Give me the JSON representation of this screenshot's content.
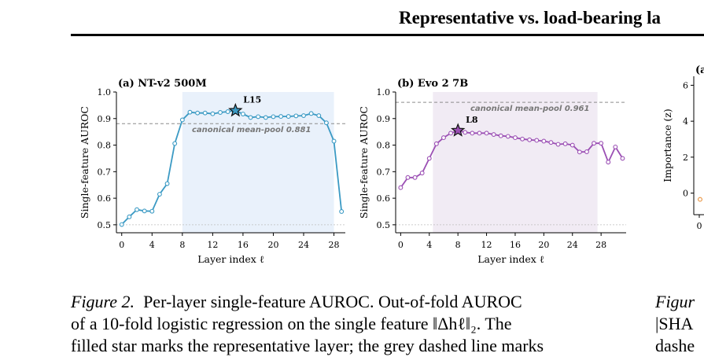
{
  "header": {
    "title": "Representative vs. load-bearing la"
  },
  "caption_left": {
    "label": "Figure 2.",
    "lines": [
      "Per-layer single-feature AUROC. Out-of-fold AUROC",
      "of a 10-fold logistic regression on the single feature ‖Δhℓ‖₂. The",
      "filled star marks the representative layer; the grey dashed line marks"
    ]
  },
  "caption_right": {
    "lines": [
      "Figur",
      "|SHA",
      "dashe"
    ]
  },
  "chart_data": [
    {
      "type": "line",
      "title": "(a) NT-v2 500M",
      "xlabel": "Layer index ℓ",
      "ylabel": "Single-feature AUROC",
      "xlim": [
        0,
        29
      ],
      "ylim": [
        0.5,
        1.0
      ],
      "xticks": [
        0,
        4,
        8,
        12,
        16,
        20,
        24,
        28
      ],
      "yticks": [
        0.5,
        0.6,
        0.7,
        0.8,
        0.9,
        1.0
      ],
      "color": "#3b9ac4",
      "shaded_region": [
        8,
        28
      ],
      "x": [
        0,
        1,
        2,
        3,
        4,
        5,
        6,
        7,
        8,
        9,
        10,
        11,
        12,
        13,
        14,
        15,
        16,
        17,
        18,
        19,
        20,
        21,
        22,
        23,
        24,
        25,
        26,
        27,
        28,
        29
      ],
      "values": [
        0.501,
        0.53,
        0.557,
        0.552,
        0.551,
        0.615,
        0.655,
        0.806,
        0.895,
        0.924,
        0.921,
        0.921,
        0.918,
        0.923,
        0.926,
        0.93,
        0.917,
        0.904,
        0.907,
        0.904,
        0.907,
        0.908,
        0.908,
        0.91,
        0.911,
        0.919,
        0.911,
        0.884,
        0.815,
        0.55
      ],
      "star": {
        "x": 15,
        "y": 0.93,
        "label": "L15"
      },
      "reference": {
        "y": 0.881,
        "label": "canonical mean-pool 0.881"
      },
      "chance_line": 0.5
    },
    {
      "type": "line",
      "title": "(b) Evo 2 7B",
      "xlabel": "Layer index ℓ",
      "ylabel": "Single-feature AUROC",
      "xlim": [
        0,
        31
      ],
      "ylim": [
        0.5,
        1.0
      ],
      "xticks": [
        0,
        4,
        8,
        12,
        16,
        20,
        24,
        28
      ],
      "yticks": [
        0.5,
        0.6,
        0.7,
        0.8,
        0.9,
        1.0
      ],
      "color": "#9b4fb4",
      "shaded_region": [
        4.5,
        27.5
      ],
      "x": [
        0,
        1,
        2,
        3,
        4,
        5,
        6,
        7,
        8,
        9,
        10,
        11,
        12,
        13,
        14,
        15,
        16,
        17,
        18,
        19,
        20,
        21,
        22,
        23,
        24,
        25,
        26,
        27,
        28,
        29,
        30,
        31
      ],
      "values": [
        0.64,
        0.678,
        0.678,
        0.695,
        0.75,
        0.805,
        0.828,
        0.845,
        0.855,
        0.848,
        0.845,
        0.845,
        0.845,
        0.84,
        0.835,
        0.833,
        0.828,
        0.823,
        0.82,
        0.818,
        0.815,
        0.81,
        0.803,
        0.805,
        0.8,
        0.774,
        0.775,
        0.807,
        0.807,
        0.736,
        0.793,
        0.75
      ],
      "star": {
        "x": 8,
        "y": 0.855,
        "label": "L8"
      },
      "reference": {
        "y": 0.961,
        "label": "canonical mean-pool 0.961"
      },
      "chance_line": 0.5
    },
    {
      "type": "bar",
      "title": "(a",
      "ylabel": "Importance (z)",
      "yticks": [
        0,
        2,
        4,
        6
      ],
      "xticks": [
        0
      ],
      "ylim": [
        -1.2,
        6.5
      ]
    }
  ]
}
